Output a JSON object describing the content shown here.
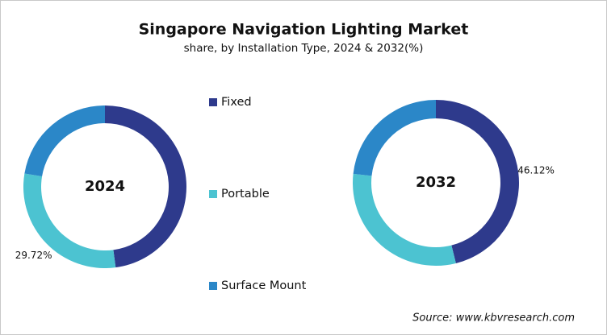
{
  "title": "Singapore Navigation Lighting Market",
  "subtitle": "share, by Installation Type, 2024 & 2032(%)",
  "source": "Source: www.kbvresearch.com",
  "chart_data": {
    "type": "donut",
    "categories": [
      "Fixed",
      "Portable",
      "Surface Mount"
    ],
    "colors": [
      "#2e3a8c",
      "#4cc3d1",
      "#2b87c8"
    ],
    "series": [
      {
        "name": "2024",
        "values": [
          47.9,
          29.72,
          22.38
        ],
        "value_labels": [
          null,
          "29.72%",
          null
        ]
      },
      {
        "name": "2032",
        "values": [
          46.12,
          30.6,
          23.28
        ],
        "value_labels": [
          "46.12%",
          null,
          null
        ]
      }
    ]
  }
}
